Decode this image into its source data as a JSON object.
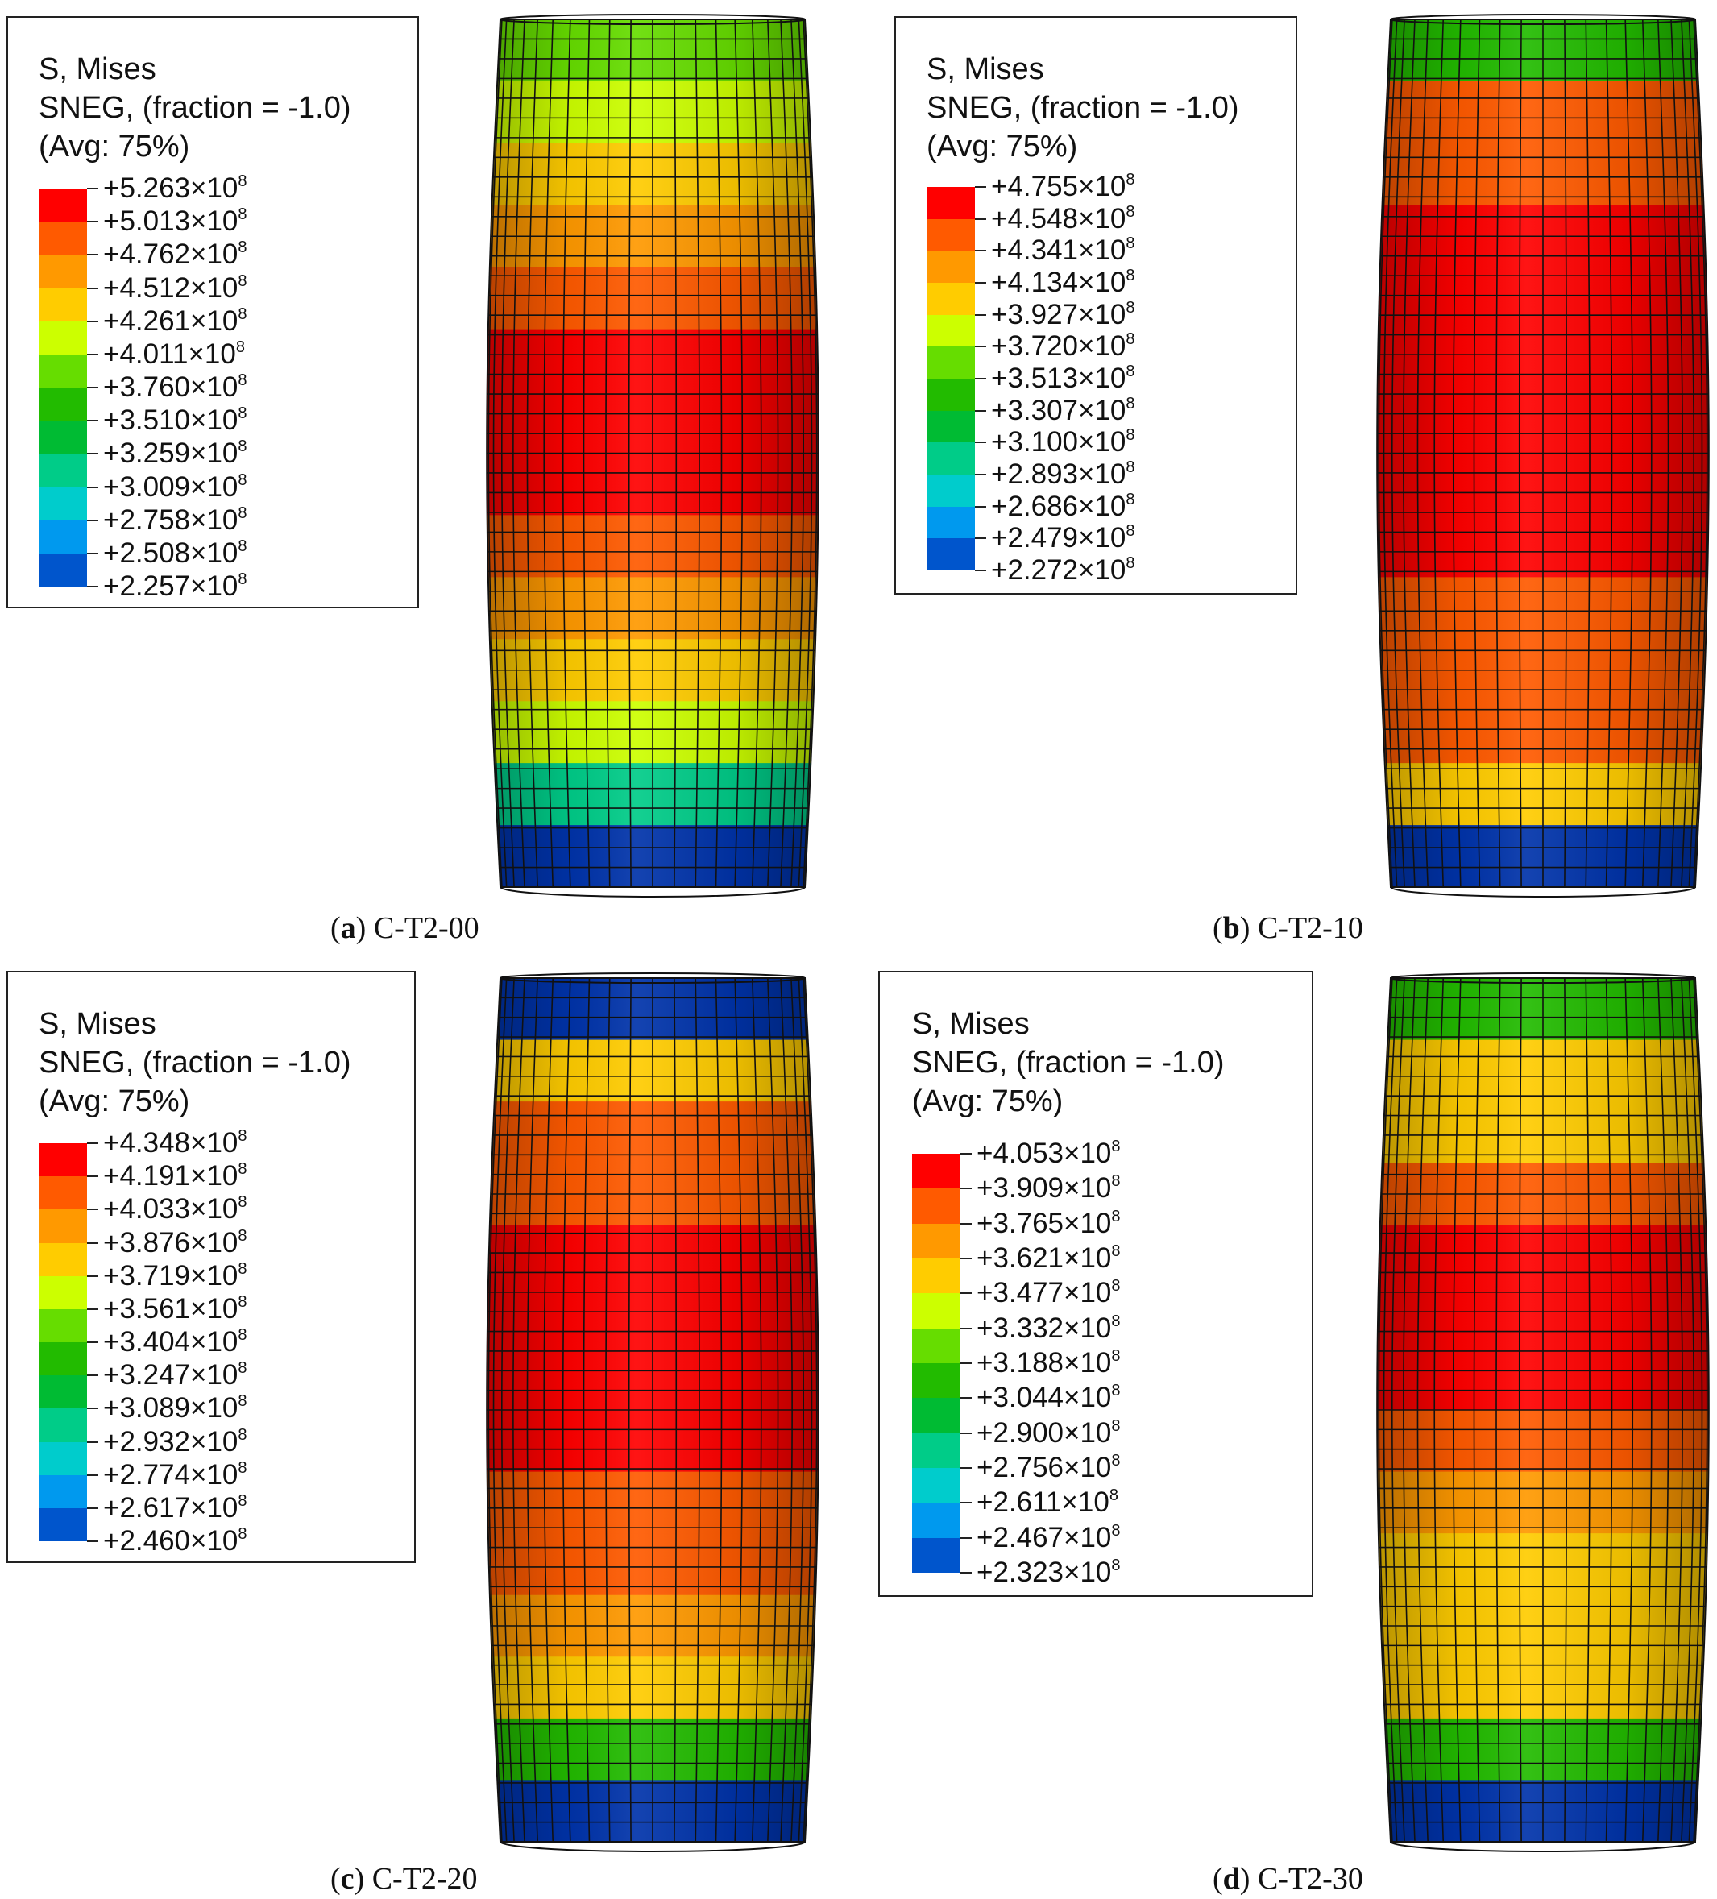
{
  "palette": [
    "#ff0000",
    "#ff5a00",
    "#ff9900",
    "#ffcc00",
    "#ccff00",
    "#66dd00",
    "#22bb00",
    "#00bb33",
    "#00cc88",
    "#00cccc",
    "#0099ee",
    "#0055cc",
    "#0033aa"
  ],
  "panels": [
    {
      "label": "a",
      "name": "C-T2-00",
      "legend": {
        "title1": "S, Mises",
        "title2": "SNEG, (fraction = -1.0)",
        "title3": "(Avg: 75%)",
        "values": [
          "+5.263",
          "+5.013",
          "+4.762",
          "+4.512",
          "+4.261",
          "+4.011",
          "+3.760",
          "+3.510",
          "+3.259",
          "+3.009",
          "+2.758",
          "+2.508",
          "+2.257"
        ],
        "exp_base": "×10",
        "exp_power": "8"
      },
      "bands": [
        5,
        4,
        3,
        2,
        1,
        0,
        0,
        0,
        1,
        2,
        3,
        4,
        8,
        12
      ]
    },
    {
      "label": "b",
      "name": "C-T2-10",
      "legend": {
        "title1": "S, Mises",
        "title2": "SNEG, (fraction = -1.0)",
        "title3": "(Avg: 75%)",
        "values": [
          "+4.755",
          "+4.548",
          "+4.341",
          "+4.134",
          "+3.927",
          "+3.720",
          "+3.513",
          "+3.307",
          "+3.100",
          "+2.893",
          "+2.686",
          "+2.479",
          "+2.272"
        ],
        "exp_base": "×10",
        "exp_power": "8"
      },
      "bands": [
        6,
        1,
        1,
        0,
        0,
        0,
        0,
        0,
        0,
        1,
        1,
        1,
        3,
        12
      ]
    },
    {
      "label": "c",
      "name": "C-T2-20",
      "legend": {
        "title1": "S, Mises",
        "title2": "SNEG, (fraction = -1.0)",
        "title3": "(Avg: 75%)",
        "values": [
          "+4.348",
          "+4.191",
          "+4.033",
          "+3.876",
          "+3.719",
          "+3.561",
          "+3.404",
          "+3.247",
          "+3.089",
          "+2.932",
          "+2.774",
          "+2.617",
          "+2.460"
        ],
        "exp_base": "×10",
        "exp_power": "8"
      },
      "bands": [
        12,
        3,
        1,
        1,
        0,
        0,
        0,
        0,
        1,
        1,
        2,
        3,
        6,
        12
      ]
    },
    {
      "label": "d",
      "name": "C-T2-30",
      "legend": {
        "title1": "S, Mises",
        "title2": "SNEG, (fraction = -1.0)",
        "title3": "(Avg: 75%)",
        "values": [
          "+4.053",
          "+3.909",
          "+3.765",
          "+3.621",
          "+3.477",
          "+3.332",
          "+3.188",
          "+3.044",
          "+2.900",
          "+2.756",
          "+2.611",
          "+2.467",
          "+2.323"
        ],
        "exp_base": "×10",
        "exp_power": "8"
      },
      "bands": [
        6,
        3,
        3,
        1,
        0,
        0,
        0,
        1,
        2,
        3,
        3,
        3,
        6,
        12
      ]
    }
  ]
}
